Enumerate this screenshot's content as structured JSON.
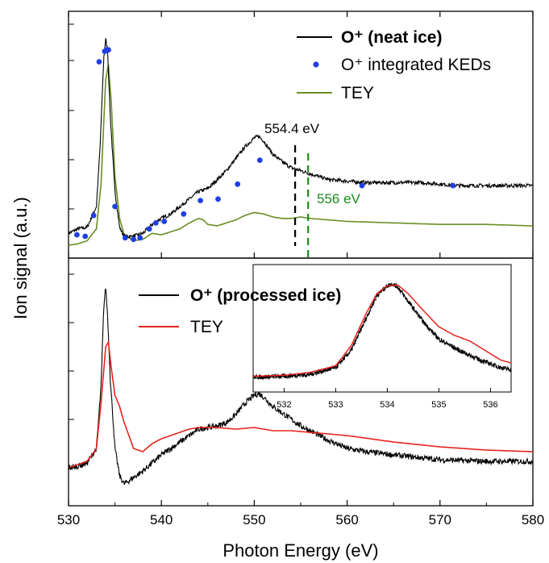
{
  "colors": {
    "black": "#000000",
    "tey_top": "#6b8e23",
    "tey_bottom": "#e8231e",
    "points": "#1f3fe6",
    "annot_green": "#1a8a1a"
  },
  "chart_data": [
    {
      "type": "line",
      "panel": "top",
      "xlim": [
        530,
        580
      ],
      "grid": false,
      "legend_position": "top-right",
      "series": [
        {
          "name": "O+ (neat ice)",
          "style": "line",
          "x": [
            530,
            531,
            532,
            533,
            533.4,
            533.8,
            534.0,
            534.2,
            534.5,
            535.0,
            535.5,
            536.0,
            537.0,
            538.0,
            539.0,
            540.0,
            541.0,
            542.0,
            543.0,
            544.0,
            545.0,
            546.0,
            547.0,
            548.0,
            549.0,
            550.0,
            550.5,
            551.0,
            552.0,
            553.0,
            554.0,
            555.0,
            556.0,
            558.0,
            560.0,
            562.0,
            565.0,
            568.0,
            570.0,
            572.0,
            575.0,
            578.0,
            580.0
          ],
          "y": [
            0.02,
            0.05,
            0.06,
            0.2,
            0.6,
            1.2,
            1.32,
            1.25,
            0.8,
            0.3,
            0.06,
            0.0,
            0.0,
            0.02,
            0.08,
            0.12,
            0.15,
            0.2,
            0.25,
            0.3,
            0.32,
            0.38,
            0.44,
            0.52,
            0.6,
            0.66,
            0.67,
            0.64,
            0.55,
            0.5,
            0.46,
            0.44,
            0.42,
            0.38,
            0.37,
            0.36,
            0.36,
            0.36,
            0.35,
            0.34,
            0.34,
            0.34,
            0.34
          ]
        },
        {
          "name": "O+ integrated KEDs",
          "style": "points",
          "x": [
            530.9,
            531.8,
            532.7,
            533.3,
            533.9,
            534.15,
            534.3,
            535.0,
            536.1,
            537.0,
            537.7,
            538.7,
            539.4,
            540.3,
            542.4,
            544.2,
            546.1,
            548.2,
            550.6,
            561.6,
            571.4
          ],
          "y": [
            0.01,
            0.0,
            0.14,
            1.17,
            1.24,
            1.25,
            1.25,
            0.2,
            -0.01,
            -0.02,
            -0.01,
            0.05,
            0.09,
            0.1,
            0.15,
            0.24,
            0.25,
            0.35,
            0.51,
            0.34,
            0.34
          ]
        },
        {
          "name": "TEY",
          "style": "line",
          "x": [
            530,
            531,
            532,
            533,
            533.5,
            534.0,
            534.3,
            534.6,
            535.0,
            535.5,
            536.0,
            537.0,
            538.0,
            539.0,
            540.0,
            541.0,
            542.0,
            543.0,
            544.0,
            544.5,
            545.0,
            546.0,
            547.0,
            548.0,
            549.0,
            550.0,
            551.0,
            552.0,
            553.0,
            554.0,
            555.0,
            556.0,
            558.0,
            560.0,
            565.0,
            570.0,
            575.0,
            580.0
          ],
          "y": [
            -0.06,
            -0.05,
            -0.03,
            0.05,
            0.35,
            1.05,
            1.15,
            0.9,
            0.4,
            0.12,
            0.01,
            -0.03,
            -0.02,
            0.02,
            0.01,
            0.03,
            0.05,
            0.09,
            0.12,
            0.11,
            0.08,
            0.07,
            0.09,
            0.11,
            0.14,
            0.16,
            0.15,
            0.13,
            0.12,
            0.12,
            0.13,
            0.12,
            0.11,
            0.1,
            0.09,
            0.08,
            0.08,
            0.07
          ]
        }
      ],
      "annotations": [
        {
          "text": "554.4 eV",
          "x": 554.4,
          "color": "black"
        },
        {
          "text": "556 eV",
          "x": 555.8,
          "color": "green"
        }
      ]
    },
    {
      "type": "line",
      "panel": "bottom",
      "xlim": [
        530,
        580
      ],
      "grid": false,
      "legend_position": "top-left",
      "series": [
        {
          "name": "O+ (processed ice)",
          "style": "line",
          "x": [
            530,
            531,
            532,
            533,
            533.5,
            533.8,
            534.0,
            534.2,
            534.5,
            535.0,
            535.5,
            536.0,
            537.0,
            538.0,
            539.0,
            540.0,
            541.0,
            542.0,
            543.0,
            544.0,
            545.0,
            546.0,
            547.0,
            548.0,
            549.0,
            550.0,
            550.5,
            551.0,
            552.0,
            553.0,
            554.0,
            555.0,
            556.0,
            558.0,
            560.0,
            562.0,
            565.0,
            570.0,
            575.0,
            580.0
          ],
          "y": [
            0.0,
            0.01,
            0.03,
            0.12,
            0.5,
            1.0,
            1.12,
            0.95,
            0.55,
            0.12,
            -0.05,
            -0.1,
            -0.06,
            -0.02,
            0.03,
            0.08,
            0.12,
            0.16,
            0.2,
            0.24,
            0.25,
            0.26,
            0.28,
            0.33,
            0.4,
            0.45,
            0.46,
            0.44,
            0.38,
            0.34,
            0.3,
            0.26,
            0.23,
            0.17,
            0.12,
            0.1,
            0.08,
            0.05,
            0.04,
            0.04
          ]
        },
        {
          "name": "TEY",
          "style": "line",
          "x": [
            530,
            531,
            532,
            533,
            533.5,
            534.0,
            534.3,
            534.6,
            535.0,
            535.5,
            536.0,
            537.0,
            538.0,
            539.0,
            540.0,
            541.0,
            542.0,
            543.0,
            544.0,
            545.0,
            546.0,
            548.0,
            550.0,
            551.0,
            552.0,
            554.0,
            556.0,
            560.0,
            565.0,
            570.0,
            575.0,
            580.0
          ],
          "y": [
            0.0,
            0.02,
            0.04,
            0.12,
            0.4,
            0.75,
            0.78,
            0.62,
            0.45,
            0.38,
            0.28,
            0.12,
            0.1,
            0.15,
            0.18,
            0.2,
            0.22,
            0.24,
            0.25,
            0.25,
            0.25,
            0.24,
            0.25,
            0.24,
            0.23,
            0.23,
            0.22,
            0.2,
            0.16,
            0.13,
            0.11,
            0.1
          ]
        }
      ],
      "xlabel": "Photon Energy (eV)",
      "xticks": [
        530,
        540,
        550,
        560,
        570,
        580
      ],
      "inset": {
        "type": "line",
        "xlim": [
          531.4,
          536.4
        ],
        "xticks": [
          532,
          533,
          534,
          535,
          536
        ],
        "series": [
          {
            "name": "O+ (processed ice)",
            "x": [
              531.4,
              532.0,
              532.5,
              533.0,
              533.3,
              533.6,
              533.8,
              534.0,
              534.1,
              534.2,
              534.4,
              534.7,
              535.0,
              535.4,
              535.8,
              536.2,
              536.4
            ],
            "y": [
              0.02,
              0.03,
              0.05,
              0.12,
              0.3,
              0.65,
              0.88,
              0.98,
              1.0,
              0.97,
              0.82,
              0.6,
              0.42,
              0.3,
              0.2,
              0.12,
              0.1
            ]
          },
          {
            "name": "TEY",
            "x": [
              531.4,
              532.0,
              532.5,
              533.0,
              533.3,
              533.6,
              533.8,
              534.0,
              534.2,
              534.4,
              534.7,
              535.0,
              535.3,
              535.6,
              535.9,
              536.2,
              536.4
            ],
            "y": [
              0.03,
              0.04,
              0.07,
              0.14,
              0.35,
              0.7,
              0.9,
              0.98,
              0.99,
              0.9,
              0.72,
              0.55,
              0.46,
              0.4,
              0.3,
              0.2,
              0.17
            ]
          }
        ]
      }
    }
  ],
  "ylabel": "Ion signal (a.u.)",
  "legend_top": {
    "neat": "O⁺ (neat ice)",
    "keds": "O⁺ integrated KEDs",
    "tey": "TEY"
  },
  "legend_bottom": {
    "processed": "O⁺ (processed ice)",
    "tey": "TEY"
  },
  "annotations_text": {
    "a1": "554.4 eV",
    "a2": "556 eV"
  }
}
